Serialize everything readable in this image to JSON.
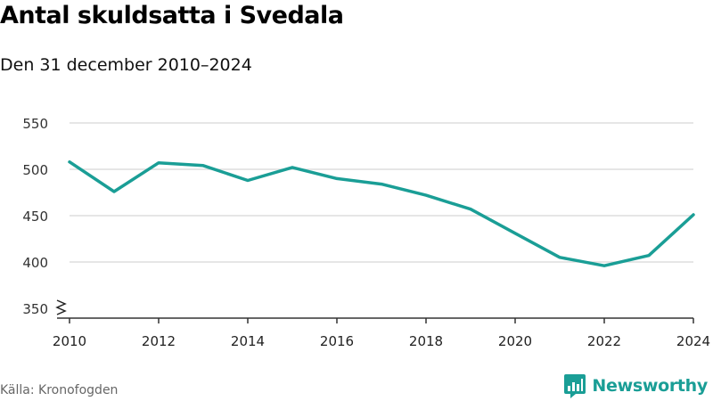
{
  "title": "Antal skuldsatta i Svedala",
  "subtitle": "Den 31 december 2010–2024",
  "source": "Källa: Kronofogden",
  "brand": {
    "name": "Newsworthy",
    "icon": "newsworthy-logo-icon",
    "color": "#1a9e96"
  },
  "colors": {
    "line": "#1a9e96",
    "grid": "#dddddd",
    "axis": "#333333"
  },
  "chart_data": {
    "type": "line",
    "title": "Antal skuldsatta i Svedala",
    "subtitle": "Den 31 december 2010–2024",
    "x": [
      2010,
      2011,
      2012,
      2013,
      2014,
      2015,
      2016,
      2017,
      2018,
      2019,
      2020,
      2021,
      2022,
      2023,
      2024
    ],
    "series": [
      {
        "values": [
          508,
          476,
          507,
          504,
          488,
          502,
          490,
          484,
          472,
          457,
          431,
          405,
          396,
          407,
          451
        ]
      }
    ],
    "xticks": [
      "2010",
      "2012",
      "2014",
      "2016",
      "2018",
      "2020",
      "2022",
      "2024"
    ],
    "yticks": [
      "350",
      "400",
      "450",
      "500",
      "550"
    ],
    "ylim": [
      350,
      550
    ],
    "xlim": [
      2010,
      2024
    ],
    "y_axis_break": true,
    "grid": true,
    "xlabel": "",
    "ylabel": ""
  }
}
